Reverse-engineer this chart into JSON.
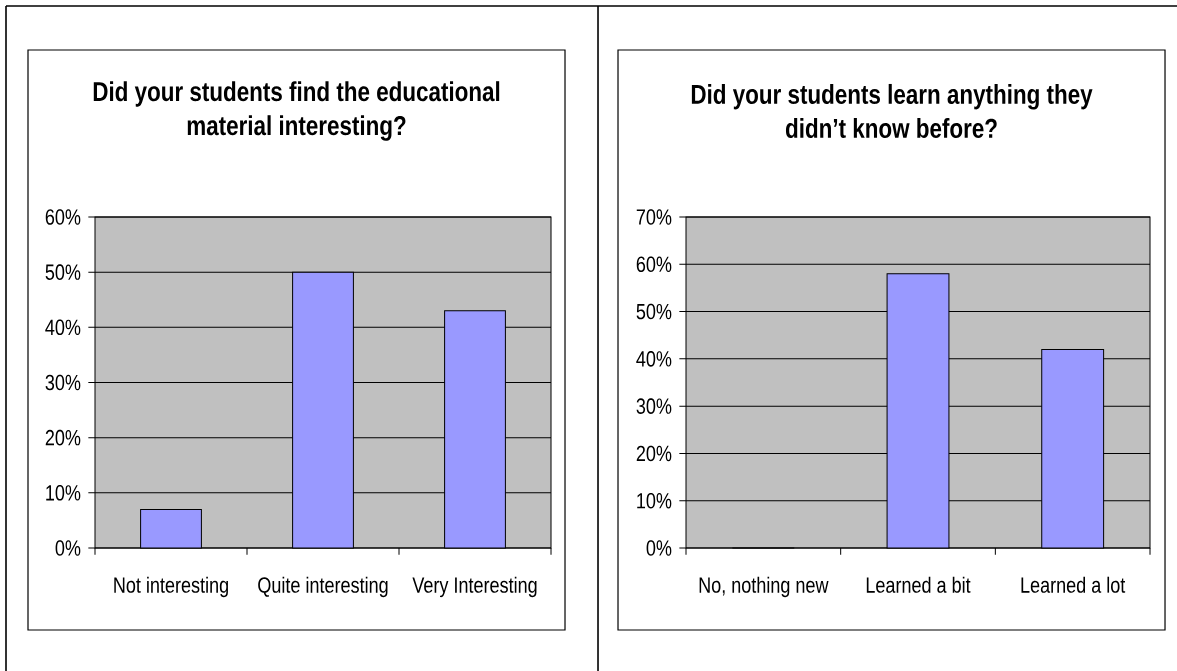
{
  "chart_data": [
    {
      "type": "bar",
      "title": "Did your students find the educational material interesting?",
      "categories": [
        "Not interesting",
        "Quite interesting",
        "Very Interesting"
      ],
      "values": [
        7,
        50,
        43
      ],
      "color": "#9999ff",
      "ylim": [
        0,
        60
      ],
      "yticks": [
        {
          "value": 0,
          "label": "0%"
        },
        {
          "value": 10,
          "label": "10%"
        },
        {
          "value": 20,
          "label": "20%"
        },
        {
          "value": 30,
          "label": "30%"
        },
        {
          "value": 40,
          "label": "40%"
        },
        {
          "value": 50,
          "label": "50%"
        },
        {
          "value": 60,
          "label": "60%"
        }
      ],
      "grid": "y"
    },
    {
      "type": "bar",
      "title": "Did your students learn anything they didn’t know before?",
      "categories": [
        "No, nothing new",
        "Learned a bit",
        "Learned a lot"
      ],
      "values": [
        0,
        58,
        42
      ],
      "color": "#9999ff",
      "ylim": [
        0,
        70
      ],
      "yticks": [
        {
          "value": 0,
          "label": "0%"
        },
        {
          "value": 10,
          "label": "10%"
        },
        {
          "value": 20,
          "label": "20%"
        },
        {
          "value": 30,
          "label": "30%"
        },
        {
          "value": 40,
          "label": "40%"
        },
        {
          "value": 50,
          "label": "50%"
        },
        {
          "value": 60,
          "label": "60%"
        },
        {
          "value": 70,
          "label": "70%"
        }
      ],
      "grid": "y"
    }
  ]
}
